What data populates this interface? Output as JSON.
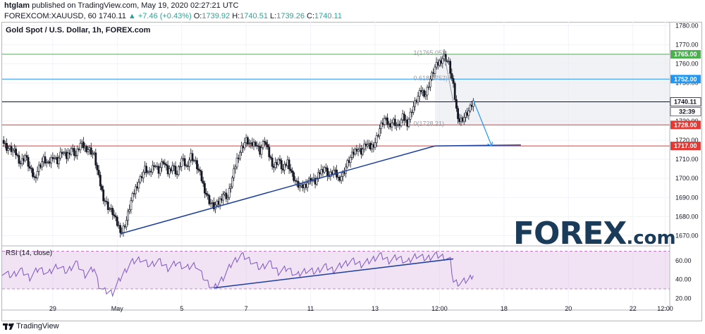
{
  "header": {
    "author": "htglam",
    "published_text": "published on TradingView.com, May 19, 2020 02:27:21 UTC"
  },
  "symbol_bar": {
    "symbol": "FOREXCOM:XAUUSD, 60",
    "last": "1740.11",
    "change": "▲ +7.46 (+0.43%)",
    "o_label": "O:",
    "o": "1739.92",
    "h_label": "H:",
    "h": "1740.51",
    "l_label": "L:",
    "l": "1739.26",
    "c_label": "C:",
    "c": "1740.11"
  },
  "chart_title": "Gold Spot / U.S. Dollar, 1h, FOREX.com",
  "rsi_title": "RSI (14, close)",
  "logo": {
    "main": "FOREX",
    "suffix": ".com"
  },
  "footer": {
    "brand": "TradingView"
  },
  "price_tags": [
    {
      "price": 1765.0,
      "label": "1765.00",
      "color": "#4caf50",
      "line": "#4caf50"
    },
    {
      "price": 1752.0,
      "label": "1752.00",
      "color": "#2196f3",
      "line": "#2196f3"
    },
    {
      "price": 1740.11,
      "label": "1740.11",
      "color": "#131722",
      "line": "#131722"
    },
    {
      "price": 1728.0,
      "label": "1728.00",
      "color": "#e53935",
      "line": "#e53935"
    },
    {
      "price": 1717.0,
      "label": "1717.00",
      "color": "#e53935",
      "line": "#e53935"
    }
  ],
  "countdown": "32:39",
  "fib_labels": [
    {
      "text": "1(1765.05)",
      "price": 1765.8
    },
    {
      "text": "0.618(1752)",
      "price": 1752.5
    },
    {
      "text": "0(1728.21)",
      "price": 1728.6
    }
  ],
  "chart_data": {
    "type": "candlestick",
    "ylim": [
      1665,
      1782
    ],
    "y_ticks": [
      1670,
      1680,
      1690,
      1700,
      1710,
      1720,
      1730,
      1740,
      1750,
      1760,
      1770,
      1780
    ],
    "x_ticks": [
      "29",
      "May",
      "5",
      "7",
      "11",
      "13",
      "12:00",
      "18",
      "20",
      "22",
      "12:00"
    ],
    "close_path": [
      [
        0,
        1720
      ],
      [
        3,
        1716
      ],
      [
        6,
        1715
      ],
      [
        9,
        1713
      ],
      [
        12,
        1708
      ],
      [
        15,
        1712
      ],
      [
        18,
        1705
      ],
      [
        21,
        1700
      ],
      [
        24,
        1706
      ],
      [
        27,
        1710
      ],
      [
        30,
        1707
      ],
      [
        33,
        1712
      ],
      [
        36,
        1709
      ],
      [
        39,
        1714
      ],
      [
        42,
        1711
      ],
      [
        45,
        1716
      ],
      [
        48,
        1712
      ],
      [
        51,
        1718
      ],
      [
        54,
        1716
      ],
      [
        57,
        1715
      ],
      [
        60,
        1712
      ],
      [
        63,
        1700
      ],
      [
        66,
        1690
      ],
      [
        69,
        1685
      ],
      [
        72,
        1682
      ],
      [
        75,
        1676
      ],
      [
        78,
        1672
      ],
      [
        81,
        1678
      ],
      [
        84,
        1688
      ],
      [
        87,
        1695
      ],
      [
        90,
        1700
      ],
      [
        93,
        1705
      ],
      [
        96,
        1702
      ],
      [
        99,
        1708
      ],
      [
        102,
        1704
      ],
      [
        105,
        1709
      ],
      [
        108,
        1703
      ],
      [
        111,
        1707
      ],
      [
        114,
        1702
      ],
      [
        117,
        1710
      ],
      [
        120,
        1706
      ],
      [
        123,
        1712
      ],
      [
        126,
        1708
      ],
      [
        129,
        1702
      ],
      [
        132,
        1694
      ],
      [
        135,
        1688
      ],
      [
        138,
        1685
      ],
      [
        141,
        1687
      ],
      [
        144,
        1692
      ],
      [
        147,
        1690
      ],
      [
        150,
        1700
      ],
      [
        153,
        1710
      ],
      [
        156,
        1716
      ],
      [
        159,
        1720
      ],
      [
        162,
        1717
      ],
      [
        165,
        1719
      ],
      [
        168,
        1714
      ],
      [
        171,
        1720
      ],
      [
        174,
        1712
      ],
      [
        177,
        1706
      ],
      [
        180,
        1710
      ],
      [
        183,
        1704
      ],
      [
        186,
        1709
      ],
      [
        189,
        1702
      ],
      [
        192,
        1697
      ],
      [
        195,
        1695
      ],
      [
        198,
        1697
      ],
      [
        201,
        1700
      ],
      [
        204,
        1698
      ],
      [
        207,
        1703
      ],
      [
        210,
        1706
      ],
      [
        213,
        1701
      ],
      [
        216,
        1704
      ],
      [
        219,
        1700
      ],
      [
        222,
        1702
      ],
      [
        225,
        1708
      ],
      [
        228,
        1712
      ],
      [
        231,
        1716
      ],
      [
        234,
        1714
      ],
      [
        237,
        1718
      ],
      [
        240,
        1716
      ],
      [
        243,
        1719
      ],
      [
        246,
        1726
      ],
      [
        249,
        1731
      ],
      [
        252,
        1728
      ],
      [
        255,
        1730
      ],
      [
        258,
        1727
      ],
      [
        261,
        1732
      ],
      [
        264,
        1729
      ],
      [
        267,
        1736
      ],
      [
        270,
        1741
      ],
      [
        273,
        1746
      ],
      [
        276,
        1744
      ],
      [
        279,
        1752
      ],
      [
        282,
        1758
      ],
      [
        285,
        1761
      ],
      [
        288,
        1764
      ],
      [
        291,
        1760
      ],
      [
        294,
        1748
      ],
      [
        296,
        1736
      ],
      [
        298,
        1730
      ],
      [
        301,
        1732
      ],
      [
        304,
        1735
      ],
      [
        307,
        1740
      ]
    ],
    "rsi": {
      "ylim": [
        15,
        75
      ],
      "y_ticks": [
        20,
        40,
        60
      ],
      "band": [
        30,
        70
      ],
      "path": [
        [
          0,
          48
        ],
        [
          6,
          44
        ],
        [
          12,
          50
        ],
        [
          18,
          42
        ],
        [
          24,
          52
        ],
        [
          30,
          46
        ],
        [
          36,
          55
        ],
        [
          42,
          48
        ],
        [
          48,
          58
        ],
        [
          54,
          45
        ],
        [
          60,
          52
        ],
        [
          63,
          34
        ],
        [
          66,
          28
        ],
        [
          72,
          26
        ],
        [
          78,
          44
        ],
        [
          84,
          58
        ],
        [
          90,
          62
        ],
        [
          96,
          55
        ],
        [
          102,
          60
        ],
        [
          108,
          52
        ],
        [
          114,
          58
        ],
        [
          120,
          52
        ],
        [
          126,
          56
        ],
        [
          132,
          40
        ],
        [
          138,
          30
        ],
        [
          144,
          42
        ],
        [
          150,
          58
        ],
        [
          156,
          66
        ],
        [
          162,
          60
        ],
        [
          168,
          52
        ],
        [
          174,
          58
        ],
        [
          180,
          48
        ],
        [
          186,
          52
        ],
        [
          192,
          44
        ],
        [
          198,
          50
        ],
        [
          204,
          48
        ],
        [
          210,
          54
        ],
        [
          216,
          50
        ],
        [
          222,
          56
        ],
        [
          228,
          60
        ],
        [
          234,
          56
        ],
        [
          240,
          60
        ],
        [
          246,
          66
        ],
        [
          252,
          60
        ],
        [
          258,
          64
        ],
        [
          264,
          58
        ],
        [
          270,
          66
        ],
        [
          276,
          62
        ],
        [
          282,
          66
        ],
        [
          288,
          64
        ],
        [
          292,
          60
        ],
        [
          294,
          38
        ],
        [
          298,
          36
        ],
        [
          304,
          40
        ],
        [
          307,
          46
        ]
      ]
    },
    "trendline_price": [
      [
        77,
        1671
      ],
      [
        282,
        1717
      ]
    ],
    "rsi_trendline": [
      [
        138,
        31
      ],
      [
        294,
        62
      ]
    ],
    "forecast_arrow": [
      [
        307,
        1741
      ],
      [
        319,
        1717
      ]
    ]
  }
}
